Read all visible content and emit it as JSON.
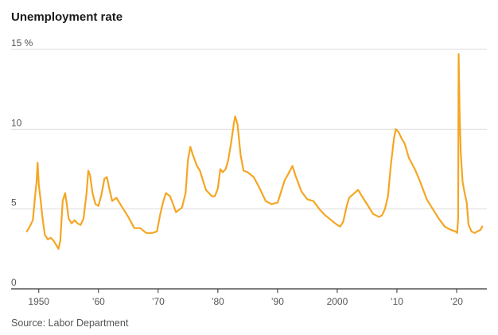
{
  "title": "Unemployment rate",
  "source": "Source: Labor Department",
  "colors": {
    "line": "#f5a623",
    "grid": "#dddddd",
    "axis": "#333333",
    "text": "#555555"
  },
  "chart_data": {
    "type": "line",
    "title": "Unemployment rate",
    "xlabel": "",
    "ylabel": "",
    "xlim": [
      1947.5,
      2024.8
    ],
    "ylim": [
      0,
      15
    ],
    "grid": true,
    "y_ticks": [
      {
        "value": 0,
        "label": "0"
      },
      {
        "value": 5,
        "label": "5"
      },
      {
        "value": 10,
        "label": "10"
      },
      {
        "value": 15,
        "label": "15 %"
      }
    ],
    "x_ticks": [
      {
        "value": 1950,
        "label": "1950"
      },
      {
        "value": 1960,
        "label": "’60"
      },
      {
        "value": 1970,
        "label": "’70"
      },
      {
        "value": 1980,
        "label": "’80"
      },
      {
        "value": 1990,
        "label": "’90"
      },
      {
        "value": 2000,
        "label": "2000"
      },
      {
        "value": 2010,
        "label": "’10"
      },
      {
        "value": 2020,
        "label": "’20"
      }
    ],
    "series": [
      {
        "x": [
          1948.0,
          1948.5,
          1949.0,
          1949.4,
          1949.6,
          1949.8,
          1950.0,
          1950.3,
          1950.6,
          1951.0,
          1951.5,
          1952.0,
          1952.5,
          1953.0,
          1953.3,
          1953.6,
          1954.0,
          1954.4,
          1954.7,
          1955.0,
          1955.5,
          1956.0,
          1956.5,
          1957.0,
          1957.5,
          1958.0,
          1958.3,
          1958.6,
          1959.0,
          1959.5,
          1960.0,
          1960.5,
          1961.0,
          1961.4,
          1961.8,
          1962.3,
          1963.0,
          1964.0,
          1965.0,
          1966.0,
          1967.0,
          1968.0,
          1969.0,
          1969.8,
          1970.3,
          1970.8,
          1971.3,
          1972.0,
          1973.0,
          1974.0,
          1974.6,
          1975.0,
          1975.4,
          1975.8,
          1976.5,
          1977.0,
          1978.0,
          1979.0,
          1979.5,
          1980.0,
          1980.4,
          1980.8,
          1981.3,
          1981.7,
          1982.2,
          1982.7,
          1982.9,
          1983.3,
          1983.8,
          1984.3,
          1985.0,
          1986.0,
          1987.0,
          1988.0,
          1989.0,
          1990.0,
          1990.7,
          1991.2,
          1991.8,
          1992.5,
          1993.0,
          1994.0,
          1995.0,
          1996.0,
          1997.0,
          1998.0,
          1999.0,
          2000.0,
          2000.5,
          2001.0,
          2001.6,
          2002.0,
          2002.6,
          2003.5,
          2004.3,
          2005.0,
          2006.0,
          2007.0,
          2007.5,
          2008.0,
          2008.5,
          2009.0,
          2009.5,
          2009.8,
          2010.3,
          2010.8,
          2011.3,
          2012.0,
          2013.0,
          2014.0,
          2015.0,
          2016.0,
          2017.0,
          2018.0,
          2019.0,
          2019.8,
          2020.1,
          2020.25,
          2020.33,
          2020.4,
          2020.5,
          2020.7,
          2021.0,
          2021.3,
          2021.7,
          2022.0,
          2022.5,
          2023.0,
          2023.5,
          2024.0,
          2024.3
        ],
        "y": [
          3.6,
          3.9,
          4.3,
          5.9,
          6.6,
          7.9,
          6.5,
          5.6,
          4.5,
          3.4,
          3.1,
          3.2,
          3.0,
          2.7,
          2.5,
          3.0,
          5.5,
          6.0,
          5.3,
          4.4,
          4.1,
          4.3,
          4.1,
          4.0,
          4.4,
          6.0,
          7.4,
          7.1,
          6.0,
          5.3,
          5.2,
          5.9,
          6.9,
          7.0,
          6.3,
          5.5,
          5.7,
          5.1,
          4.5,
          3.8,
          3.8,
          3.5,
          3.5,
          3.6,
          4.6,
          5.4,
          6.0,
          5.8,
          4.8,
          5.1,
          6.0,
          8.1,
          8.9,
          8.4,
          7.7,
          7.4,
          6.2,
          5.8,
          5.8,
          6.3,
          7.5,
          7.3,
          7.5,
          8.0,
          9.1,
          10.4,
          10.8,
          10.3,
          8.4,
          7.4,
          7.3,
          7.0,
          6.3,
          5.5,
          5.3,
          5.4,
          6.2,
          6.8,
          7.2,
          7.7,
          7.1,
          6.1,
          5.6,
          5.5,
          5.0,
          4.6,
          4.3,
          4.0,
          3.9,
          4.2,
          5.2,
          5.7,
          5.9,
          6.2,
          5.7,
          5.3,
          4.7,
          4.5,
          4.6,
          5.0,
          5.8,
          7.8,
          9.4,
          10.0,
          9.8,
          9.4,
          9.1,
          8.2,
          7.5,
          6.6,
          5.6,
          5.0,
          4.4,
          3.9,
          3.7,
          3.6,
          3.5,
          4.4,
          14.7,
          13.3,
          11.1,
          8.5,
          6.7,
          6.1,
          5.4,
          4.0,
          3.6,
          3.5,
          3.6,
          3.7,
          3.9
        ]
      }
    ]
  }
}
